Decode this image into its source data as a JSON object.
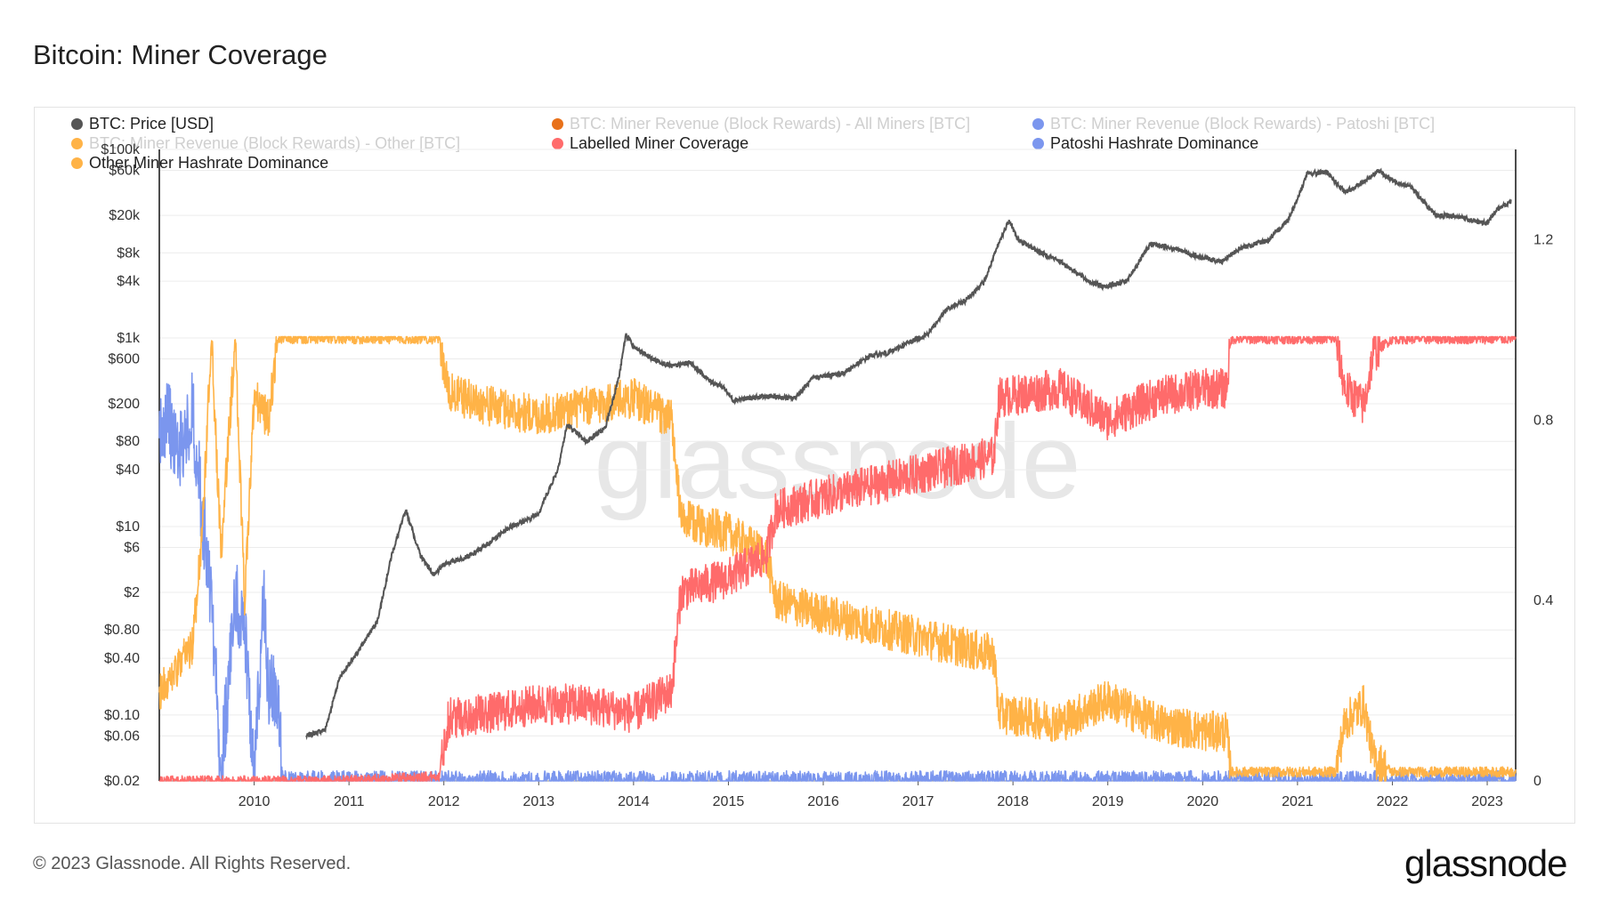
{
  "title": "Bitcoin: Miner Coverage",
  "footer": "© 2023 Glassnode. All Rights Reserved.",
  "brand": "glassnode",
  "watermark": "glassnode",
  "legend": [
    {
      "label": "BTC: Price [USD]",
      "color": "#555555",
      "faded": false
    },
    {
      "label": "BTC: Miner Revenue (Block Rewards) - All Miners [BTC]",
      "color": "#e8711a",
      "faded": true
    },
    {
      "label": "BTC: Miner Revenue (Block Rewards) - Patoshi [BTC]",
      "color": "#7b96ee",
      "faded": true
    },
    {
      "label": "BTC: Miner Revenue (Block Rewards) - Other [BTC]",
      "color": "#ffb347",
      "faded": true
    },
    {
      "label": "Labelled Miner Coverage",
      "color": "#ff6b6b",
      "faded": false
    },
    {
      "label": "Patoshi Hashrate Dominance",
      "color": "#7b96ee",
      "faded": false
    },
    {
      "label": "Other Miner Hashrate Dominance",
      "color": "#ffb347",
      "faded": false
    }
  ],
  "chart_data": {
    "type": "line",
    "title": "Bitcoin: Miner Coverage",
    "x_range": [
      2009.0,
      2023.3
    ],
    "x_ticks": [
      "2010",
      "2011",
      "2012",
      "2013",
      "2014",
      "2015",
      "2016",
      "2017",
      "2018",
      "2019",
      "2020",
      "2021",
      "2022",
      "2023"
    ],
    "y_left": {
      "scale": "log",
      "range": [
        0.02,
        100000
      ],
      "ticks": [
        "$0.02",
        "$0.06",
        "$0.10",
        "$0.40",
        "$0.80",
        "$2",
        "$6",
        "$10",
        "$40",
        "$80",
        "$200",
        "$600",
        "$1k",
        "$4k",
        "$8k",
        "$20k",
        "$60k",
        "$100k"
      ],
      "tick_values": [
        0.02,
        0.06,
        0.1,
        0.4,
        0.8,
        2,
        6,
        10,
        40,
        80,
        200,
        600,
        1000,
        4000,
        8000,
        20000,
        60000,
        100000
      ]
    },
    "y_right": {
      "scale": "linear",
      "range": [
        0,
        1.4
      ],
      "ticks": [
        "0",
        "0.4",
        "0.8",
        "1.2"
      ],
      "tick_values": [
        0,
        0.4,
        0.8,
        1.2
      ]
    },
    "grid": true,
    "series": [
      {
        "name": "BTC: Price [USD]",
        "axis": "left",
        "color": "#555555",
        "x": [
          2010.55,
          2010.75,
          2010.9,
          2011.05,
          2011.3,
          2011.45,
          2011.6,
          2011.75,
          2011.9,
          2012.0,
          2012.3,
          2012.5,
          2012.7,
          2012.9,
          2013.0,
          2013.2,
          2013.3,
          2013.5,
          2013.7,
          2013.85,
          2013.92,
          2014.0,
          2014.2,
          2014.4,
          2014.6,
          2014.8,
          2014.95,
          2015.05,
          2015.4,
          2015.7,
          2015.9,
          2016.2,
          2016.5,
          2016.7,
          2016.9,
          2017.1,
          2017.3,
          2017.5,
          2017.7,
          2017.85,
          2017.96,
          2018.05,
          2018.3,
          2018.5,
          2018.8,
          2018.96,
          2019.2,
          2019.45,
          2019.7,
          2019.96,
          2020.2,
          2020.4,
          2020.7,
          2020.9,
          2021.0,
          2021.1,
          2021.3,
          2021.5,
          2021.7,
          2021.85,
          2022.0,
          2022.2,
          2022.45,
          2022.7,
          2022.9,
          2023.0,
          2023.1,
          2023.25
        ],
        "y": [
          0.06,
          0.07,
          0.25,
          0.4,
          1,
          5,
          15,
          5,
          3,
          4,
          5,
          7,
          10,
          12,
          14,
          40,
          120,
          80,
          110,
          400,
          1100,
          800,
          600,
          500,
          550,
          350,
          300,
          220,
          240,
          230,
          380,
          420,
          650,
          700,
          900,
          1100,
          2000,
          2500,
          4000,
          10000,
          18000,
          11000,
          8000,
          6500,
          4000,
          3500,
          4000,
          10000,
          9000,
          7200,
          6500,
          9000,
          11000,
          18000,
          30000,
          55000,
          58000,
          35000,
          45000,
          60000,
          47000,
          40000,
          20000,
          19500,
          17000,
          16500,
          23000,
          28000
        ]
      },
      {
        "name": "Labelled Miner Coverage",
        "axis": "right",
        "color": "#ff6b6b",
        "x": [
          2009.0,
          2010.9,
          2011.95,
          2012.05,
          2012.5,
          2013.0,
          2013.5,
          2014.0,
          2014.4,
          2014.5,
          2015.0,
          2015.4,
          2015.5,
          2016.0,
          2017.0,
          2017.8,
          2017.85,
          2018.5,
          2019.0,
          2019.5,
          2020.0,
          2020.25,
          2020.3,
          2021.0,
          2021.4,
          2021.5,
          2021.7,
          2021.8,
          2022.0,
          2023.3
        ],
        "y": [
          0,
          0,
          0.01,
          0.14,
          0.15,
          0.17,
          0.17,
          0.15,
          0.2,
          0.42,
          0.45,
          0.5,
          0.6,
          0.63,
          0.68,
          0.72,
          0.85,
          0.87,
          0.8,
          0.85,
          0.87,
          0.87,
          0.98,
          0.98,
          0.98,
          0.87,
          0.83,
          0.95,
          0.98,
          0.98
        ]
      },
      {
        "name": "Other Miner Hashrate Dominance",
        "axis": "right",
        "color": "#ffb347",
        "x": [
          2009.0,
          2009.2,
          2009.35,
          2009.45,
          2009.55,
          2009.65,
          2009.8,
          2009.9,
          2010.0,
          2010.15,
          2010.25,
          2010.8,
          2011.95,
          2012.05,
          2012.5,
          2013.0,
          2013.5,
          2014.0,
          2014.4,
          2014.5,
          2015.0,
          2015.4,
          2015.5,
          2016.0,
          2017.0,
          2017.8,
          2017.85,
          2018.5,
          2019.0,
          2019.5,
          2020.0,
          2020.25,
          2020.3,
          2021.0,
          2021.4,
          2021.5,
          2021.7,
          2021.8,
          2022.0,
          2023.3
        ],
        "y": [
          0.2,
          0.25,
          0.3,
          0.55,
          0.98,
          0.5,
          0.98,
          0.4,
          0.85,
          0.8,
          0.98,
          0.98,
          0.98,
          0.86,
          0.83,
          0.81,
          0.83,
          0.85,
          0.8,
          0.58,
          0.55,
          0.5,
          0.4,
          0.37,
          0.32,
          0.28,
          0.15,
          0.13,
          0.18,
          0.13,
          0.11,
          0.11,
          0.02,
          0.02,
          0.02,
          0.13,
          0.17,
          0.05,
          0.02,
          0.02
        ]
      },
      {
        "name": "Patoshi Hashrate Dominance",
        "axis": "right",
        "color": "#7b96ee",
        "x": [
          2009.0,
          2009.1,
          2009.2,
          2009.35,
          2009.45,
          2009.55,
          2009.65,
          2009.8,
          2009.9,
          2010.0,
          2010.1,
          2010.15,
          2010.25,
          2010.3,
          2023.3
        ],
        "y": [
          0.78,
          0.8,
          0.72,
          0.82,
          0.6,
          0.4,
          0.02,
          0.4,
          0.35,
          0.02,
          0.4,
          0.2,
          0.18,
          0.0,
          0.0
        ]
      }
    ]
  }
}
